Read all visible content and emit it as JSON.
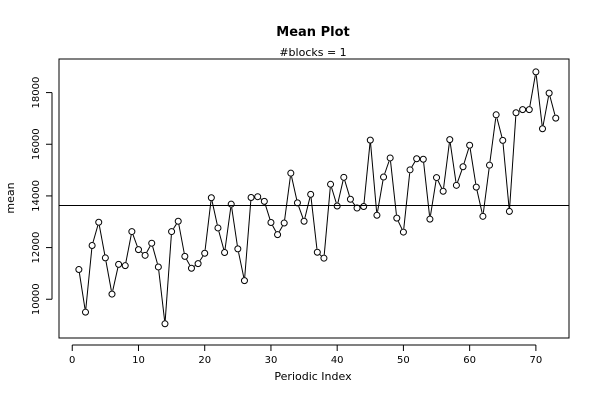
{
  "chart_data": {
    "type": "line",
    "title": "Mean Plot",
    "subtitle": "#blocks =  1",
    "xlabel": "Periodic Index",
    "ylabel": "mean",
    "xlim": [
      -2,
      75
    ],
    "ylim": [
      8500,
      19300
    ],
    "xticks": [
      0,
      10,
      20,
      30,
      40,
      50,
      60,
      70
    ],
    "yticks": [
      10000,
      12000,
      14000,
      16000,
      18000
    ],
    "hline": 13630,
    "grid": false,
    "series": [
      {
        "marker": "open-circle",
        "x": [
          1,
          2,
          3,
          4,
          5,
          6,
          7,
          8,
          9,
          10,
          11,
          12,
          13,
          14,
          15,
          16,
          17,
          18,
          19,
          20,
          21,
          22,
          23,
          24,
          25,
          26,
          27,
          28,
          29,
          30,
          31,
          32,
          33,
          34,
          35,
          36,
          37,
          38,
          39,
          40,
          41,
          42,
          43,
          44,
          45,
          46,
          47,
          48,
          49,
          50,
          51,
          52,
          53,
          54,
          55,
          56,
          57,
          58,
          59,
          60,
          61,
          62,
          63,
          64,
          65,
          66,
          67,
          68,
          69,
          70,
          71,
          72,
          73
        ],
        "values": [
          11150,
          9500,
          12080,
          12980,
          11600,
          10200,
          11350,
          11300,
          12620,
          11920,
          11700,
          12170,
          11250,
          9050,
          12620,
          13020,
          11660,
          11200,
          11380,
          11780,
          13930,
          12760,
          11810,
          13680,
          11950,
          10720,
          13940,
          13970,
          13790,
          12970,
          12500,
          12950,
          14880,
          13730,
          13020,
          14060,
          11820,
          11590,
          14450,
          13610,
          14720,
          13870,
          13530,
          13590,
          16160,
          13250,
          14730,
          15470,
          13140,
          12600,
          15010,
          15440,
          15420,
          13100,
          14710,
          14180,
          16180,
          14410,
          15130,
          15960,
          14340,
          13210,
          15190,
          17140,
          16150,
          13400,
          17220,
          17340,
          17340,
          18800,
          16600,
          17980,
          17010
        ]
      }
    ]
  }
}
